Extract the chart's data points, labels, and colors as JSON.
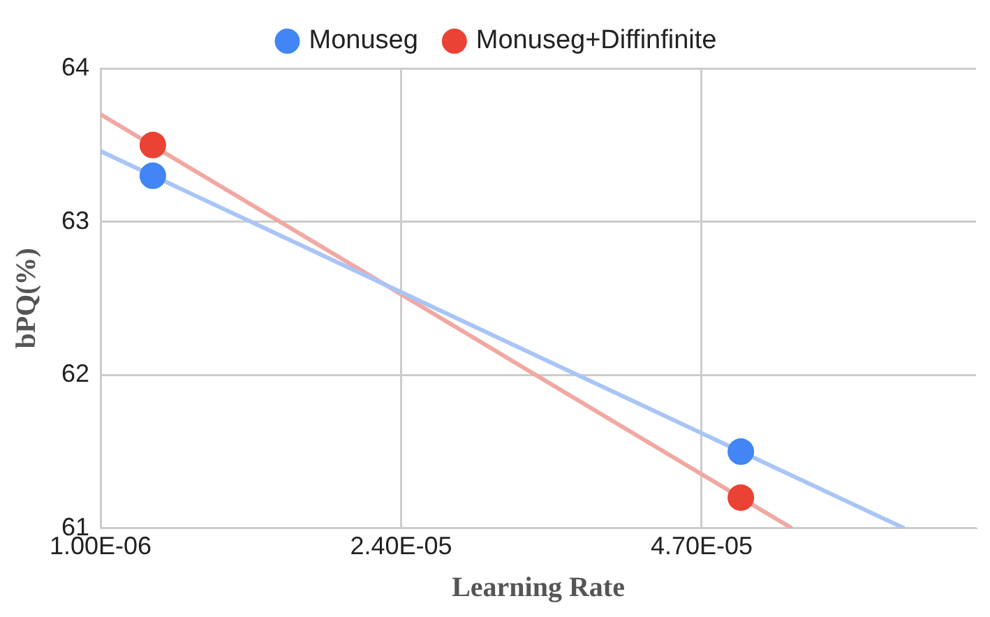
{
  "chart_data": {
    "type": "scatter",
    "xlabel": "Learning Rate",
    "ylabel": "bPQ(%)",
    "xlim": [
      1e-06,
      6.8e-05
    ],
    "xticks": [
      {
        "value": 1e-06,
        "label": "1.00E-06"
      },
      {
        "value": 2.4e-05,
        "label": "2.40E-05"
      },
      {
        "value": 4.7e-05,
        "label": "4.70E-05"
      }
    ],
    "ylim": [
      61,
      64
    ],
    "yticks": [
      61,
      62,
      63,
      64
    ],
    "grid": true,
    "legend": "top",
    "marker": "circle",
    "series": [
      {
        "name": "Monuseg",
        "color": "#4285f4",
        "x": [
          5e-06,
          5e-05
        ],
        "values": [
          63.3,
          61.5
        ]
      },
      {
        "name": "Monuseg+Diffinfinite",
        "color": "#ea4335",
        "x": [
          5e-06,
          5e-05
        ],
        "values": [
          63.5,
          61.2
        ]
      },
      {
        "type": "line",
        "marker": "none",
        "color": "#a9c5f7",
        "x": [
          1e-06,
          6.25e-05
        ],
        "values": [
          63.46,
          61
        ]
      },
      {
        "type": "line",
        "marker": "none",
        "color": "#f2a8a2",
        "x": [
          1e-06,
          5.39e-05
        ],
        "values": [
          63.7,
          61
        ]
      }
    ]
  }
}
